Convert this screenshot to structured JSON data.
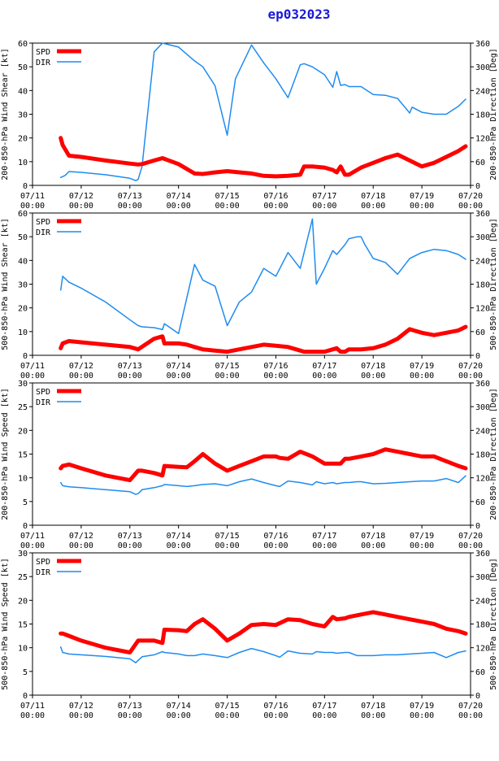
{
  "title": "ep032023",
  "x_ticks": [
    {
      "d": 0,
      "l1": "07/11",
      "l2": "00:00"
    },
    {
      "d": 1,
      "l1": "07/12",
      "l2": "00:00"
    },
    {
      "d": 2,
      "l1": "07/13",
      "l2": "00:00"
    },
    {
      "d": 3,
      "l1": "07/14",
      "l2": "00:00"
    },
    {
      "d": 4,
      "l1": "07/15",
      "l2": "00:00"
    },
    {
      "d": 5,
      "l1": "07/16",
      "l2": "00:00"
    },
    {
      "d": 6,
      "l1": "07/17",
      "l2": "00:00"
    },
    {
      "d": 7,
      "l1": "07/18",
      "l2": "00:00"
    },
    {
      "d": 8,
      "l1": "07/19",
      "l2": "00:00"
    },
    {
      "d": 9,
      "l1": "07/20",
      "l2": "00:00"
    }
  ],
  "colors": {
    "spd": "#ff0000",
    "dir": "#1e8cf0"
  },
  "chart_data": [
    {
      "type": "line",
      "ylabel_left": "200-850-hPa Wind Shear [kt]",
      "ylabel_right": "200-850-hPa Direction [Deg]",
      "xlim": [
        0,
        9
      ],
      "ylim_left": [
        0,
        60
      ],
      "ylim_right": [
        0,
        360
      ],
      "left_ticks": [
        0,
        10,
        20,
        30,
        40,
        50,
        60
      ],
      "right_ticks": [
        0,
        60,
        120,
        180,
        240,
        300,
        360
      ],
      "legend": [
        "SPD",
        "DIR"
      ],
      "series": [
        {
          "name": "SPD",
          "axis": "left",
          "x": [
            0.58,
            0.62,
            0.75,
            1.0,
            1.5,
            2.0,
            2.17,
            2.25,
            2.5,
            2.67,
            3.0,
            3.33,
            3.5,
            3.75,
            4.0,
            4.25,
            4.5,
            4.75,
            5.0,
            5.25,
            5.5,
            5.58,
            5.75,
            6.0,
            6.17,
            6.25,
            6.33,
            6.42,
            6.5,
            6.75,
            7.0,
            7.25,
            7.5,
            7.75,
            8.0,
            8.25,
            8.5,
            8.75,
            8.9
          ],
          "values": [
            20,
            17,
            12.5,
            12,
            10.5,
            9.2,
            8.8,
            9,
            10.5,
            11.5,
            9,
            5,
            4.8,
            5.5,
            6,
            5.5,
            5,
            4,
            3.8,
            4,
            4.5,
            8,
            8,
            7.5,
            6.5,
            5.5,
            8,
            4.5,
            4.5,
            7.5,
            9.5,
            11.5,
            13,
            10.5,
            8,
            9.5,
            12,
            14.5,
            16.5
          ]
        },
        {
          "name": "DIR",
          "axis": "right",
          "x": [
            0.58,
            0.67,
            0.75,
            1.0,
            1.5,
            2.0,
            2.12,
            2.17,
            2.25,
            2.5,
            2.67,
            3.0,
            3.33,
            3.5,
            3.75,
            4.0,
            4.17,
            4.5,
            4.75,
            5.0,
            5.25,
            5.5,
            5.58,
            5.75,
            6.0,
            6.17,
            6.25,
            6.33,
            6.42,
            6.5,
            6.75,
            7.0,
            7.25,
            7.5,
            7.75,
            7.8,
            8.0,
            8.25,
            8.5,
            8.75,
            8.9
          ],
          "values": [
            20,
            25,
            35,
            33,
            27,
            18,
            12,
            15,
            48,
            338,
            360,
            350,
            315,
            300,
            252,
            127,
            270,
            355,
            310,
            270,
            222,
            305,
            308,
            300,
            280,
            248,
            288,
            253,
            255,
            250,
            250,
            230,
            228,
            220,
            183,
            198,
            185,
            180,
            180,
            200,
            218
          ]
        }
      ]
    },
    {
      "type": "line",
      "ylabel_left": "500-850-hPa Wind Shear [kt]",
      "ylabel_right": "500-850-hPa Direction [Deg]",
      "xlim": [
        0,
        9
      ],
      "ylim_left": [
        0,
        60
      ],
      "ylim_right": [
        0,
        360
      ],
      "left_ticks": [
        0,
        10,
        20,
        30,
        40,
        50,
        60
      ],
      "right_ticks": [
        0,
        60,
        120,
        180,
        240,
        300,
        360
      ],
      "legend": [
        "SPD",
        "DIR"
      ],
      "series": [
        {
          "name": "SPD",
          "axis": "left",
          "x": [
            0.58,
            0.62,
            0.75,
            1.0,
            1.5,
            2.0,
            2.17,
            2.5,
            2.67,
            2.71,
            3.0,
            3.17,
            3.33,
            3.5,
            3.75,
            4.0,
            4.25,
            4.5,
            4.75,
            5.0,
            5.25,
            5.5,
            5.58,
            5.75,
            6.0,
            6.17,
            6.25,
            6.33,
            6.42,
            6.5,
            6.75,
            7.0,
            7.25,
            7.5,
            7.75,
            8.0,
            8.25,
            8.5,
            8.75,
            8.9
          ],
          "values": [
            3,
            5,
            6,
            5.5,
            4.5,
            3.5,
            2.5,
            7,
            8,
            5,
            5,
            4.5,
            3.5,
            2.5,
            2,
            1.5,
            2.5,
            3.5,
            4.5,
            4.0,
            3.5,
            2,
            1.5,
            1.5,
            1.5,
            2.5,
            3,
            1.5,
            1.5,
            2.5,
            2.5,
            3,
            4.5,
            7,
            11,
            9.5,
            8.5,
            9.5,
            10.5,
            12
          ]
        },
        {
          "name": "DIR",
          "axis": "right",
          "x": [
            0.58,
            0.62,
            0.75,
            1.0,
            1.5,
            2.0,
            2.17,
            2.25,
            2.5,
            2.67,
            2.71,
            3.0,
            3.33,
            3.5,
            3.75,
            4.0,
            4.25,
            4.5,
            4.75,
            5.0,
            5.25,
            5.5,
            5.75,
            5.83,
            6.0,
            6.17,
            6.25,
            6.42,
            6.5,
            6.67,
            6.75,
            6.83,
            7.0,
            7.25,
            7.5,
            7.75,
            8.0,
            8.25,
            8.5,
            8.75,
            8.9
          ],
          "values": [
            165,
            200,
            185,
            170,
            135,
            90,
            75,
            72,
            70,
            65,
            80,
            55,
            230,
            190,
            175,
            75,
            135,
            160,
            220,
            200,
            260,
            220,
            345,
            180,
            220,
            265,
            255,
            280,
            295,
            300,
            300,
            280,
            245,
            235,
            205,
            245,
            260,
            268,
            265,
            255,
            243
          ]
        }
      ]
    },
    {
      "type": "line",
      "ylabel_left": "200-850-hPa Wind Speed [kt]",
      "ylabel_right": "200-850-hPa Direction [Deg]",
      "xlim": [
        0,
        9
      ],
      "ylim_left": [
        0,
        30
      ],
      "ylim_right": [
        0,
        360
      ],
      "left_ticks": [
        0,
        5,
        10,
        15,
        20,
        25,
        30
      ],
      "right_ticks": [
        0,
        60,
        120,
        180,
        240,
        300,
        360
      ],
      "legend": [
        "SPD",
        "DIR"
      ],
      "series": [
        {
          "name": "SPD",
          "axis": "left",
          "x": [
            0.58,
            0.62,
            0.75,
            1.0,
            1.5,
            2.0,
            2.17,
            2.25,
            2.5,
            2.67,
            2.71,
            3.0,
            3.17,
            3.33,
            3.5,
            3.75,
            4.0,
            4.25,
            4.5,
            4.75,
            5.0,
            5.08,
            5.25,
            5.5,
            5.75,
            6.0,
            6.17,
            6.25,
            6.33,
            6.42,
            6.5,
            6.75,
            7.0,
            7.25,
            7.5,
            7.75,
            8.0,
            8.25,
            8.5,
            8.75,
            8.9
          ],
          "values": [
            12,
            12.5,
            12.8,
            12,
            10.5,
            9.5,
            11.5,
            11.5,
            11,
            10.5,
            12.5,
            12.3,
            12.2,
            13.5,
            15,
            13,
            11.5,
            12.5,
            13.5,
            14.5,
            14.5,
            14.2,
            14.0,
            15.5,
            14.5,
            13,
            13,
            13,
            13,
            14,
            14,
            14.5,
            15,
            16,
            15.5,
            15,
            14.5,
            14.5,
            13.5,
            12.5,
            12
          ]
        },
        {
          "name": "DIR",
          "axis": "right",
          "x": [
            0.58,
            0.62,
            0.75,
            1.0,
            1.5,
            2.0,
            2.12,
            2.17,
            2.25,
            2.5,
            2.67,
            2.71,
            3.0,
            3.17,
            3.33,
            3.5,
            3.75,
            4.0,
            4.25,
            4.5,
            4.75,
            5.0,
            5.08,
            5.25,
            5.5,
            5.75,
            5.83,
            6.0,
            6.17,
            6.25,
            6.42,
            6.5,
            6.67,
            6.75,
            7.0,
            7.25,
            7.5,
            7.75,
            8.0,
            8.25,
            8.5,
            8.75,
            8.9
          ],
          "values": [
            108,
            100,
            97,
            95,
            90,
            85,
            78,
            80,
            90,
            95,
            100,
            103,
            100,
            98,
            100,
            103,
            105,
            100,
            110,
            117,
            108,
            100,
            98,
            112,
            108,
            102,
            110,
            105,
            108,
            105,
            108,
            108,
            110,
            110,
            105,
            106,
            108,
            110,
            112,
            112,
            118,
            108,
            125
          ]
        }
      ]
    },
    {
      "type": "line",
      "ylabel_left": "500-850-hPa Wind Speed [kt]",
      "ylabel_right": "500-850-hPa Direction [Deg]",
      "xlim": [
        0,
        9
      ],
      "ylim_left": [
        0,
        30
      ],
      "ylim_right": [
        0,
        360
      ],
      "left_ticks": [
        0,
        5,
        10,
        15,
        20,
        25,
        30
      ],
      "right_ticks": [
        0,
        60,
        120,
        180,
        240,
        300,
        360
      ],
      "legend": [
        "SPD",
        "DIR"
      ],
      "series": [
        {
          "name": "SPD",
          "axis": "left",
          "x": [
            0.58,
            0.62,
            0.75,
            1.0,
            1.5,
            2.0,
            2.17,
            2.25,
            2.5,
            2.67,
            2.71,
            3.0,
            3.17,
            3.33,
            3.5,
            3.75,
            4.0,
            4.25,
            4.5,
            4.75,
            5.0,
            5.25,
            5.5,
            5.75,
            6.0,
            6.17,
            6.25,
            6.42,
            6.5,
            6.75,
            7.0,
            7.25,
            7.5,
            7.75,
            8.0,
            8.25,
            8.5,
            8.75,
            8.9
          ],
          "values": [
            13,
            13,
            12.5,
            11.5,
            10,
            9,
            11.5,
            11.5,
            11.5,
            11,
            13.8,
            13.7,
            13.5,
            15,
            16,
            14,
            11.5,
            13,
            14.8,
            15,
            14.8,
            16,
            15.8,
            15,
            14.5,
            16.5,
            16,
            16.2,
            16.5,
            17,
            17.5,
            17,
            16.5,
            16,
            15.5,
            15,
            14,
            13.5,
            13
          ]
        },
        {
          "name": "DIR",
          "axis": "right",
          "x": [
            0.58,
            0.62,
            0.75,
            1.0,
            1.5,
            2.0,
            2.12,
            2.17,
            2.25,
            2.5,
            2.67,
            2.71,
            3.0,
            3.17,
            3.33,
            3.5,
            3.75,
            4.0,
            4.25,
            4.5,
            4.75,
            5.0,
            5.08,
            5.25,
            5.5,
            5.75,
            5.83,
            6.0,
            6.17,
            6.25,
            6.42,
            6.5,
            6.67,
            6.75,
            7.0,
            7.25,
            7.5,
            7.75,
            8.0,
            8.25,
            8.5,
            8.75,
            8.9
          ],
          "values": [
            122,
            108,
            104,
            102,
            98,
            92,
            82,
            88,
            97,
            102,
            110,
            108,
            104,
            100,
            100,
            104,
            100,
            95,
            108,
            118,
            110,
            100,
            96,
            112,
            106,
            104,
            110,
            108,
            108,
            106,
            108,
            108,
            100,
            100,
            100,
            102,
            102,
            104,
            106,
            108,
            95,
            108,
            112
          ]
        }
      ]
    }
  ]
}
